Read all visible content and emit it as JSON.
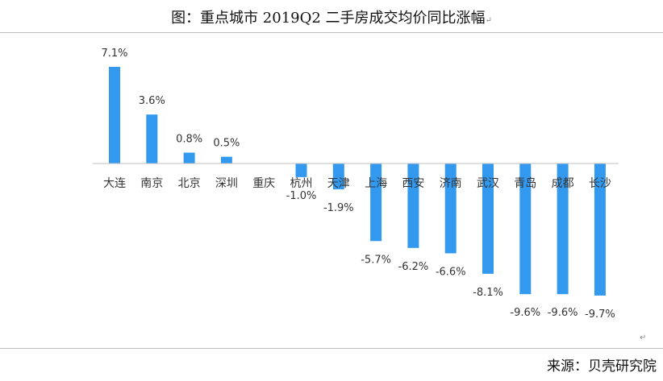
{
  "title": "图：重点城市 2019Q2 二手房成交均价同比涨幅",
  "title_mark": "↵",
  "source": "来源：贝壳研究院",
  "return_mark": "↵",
  "chart_data": {
    "type": "bar",
    "title": "图：重点城市 2019Q2 二手房成交均价同比涨幅",
    "xlabel": "",
    "ylabel": "",
    "unit": "%",
    "categories": [
      "大连",
      "南京",
      "北京",
      "深圳",
      "重庆",
      "杭州",
      "天津",
      "上海",
      "西安",
      "济南",
      "武汉",
      "青岛",
      "成都",
      "长沙"
    ],
    "values": [
      7.1,
      3.6,
      0.8,
      0.5,
      0.0,
      -1.0,
      -1.9,
      -5.7,
      -6.2,
      -6.6,
      -8.1,
      -9.6,
      -9.6,
      -9.7
    ],
    "data_labels": [
      "7.1%",
      "3.6%",
      "0.8%",
      "0.5%",
      "",
      "-1.0%",
      "-1.9%",
      "-5.7%",
      "-6.2%",
      "-6.6%",
      "-8.1%",
      "-9.6%",
      "-9.6%",
      "-9.7%"
    ],
    "ylim": [
      -9.7,
      7.1
    ],
    "bar_color": "#3399ee",
    "axis_color": "#bfbfbf",
    "grid": false,
    "legend": "none"
  }
}
